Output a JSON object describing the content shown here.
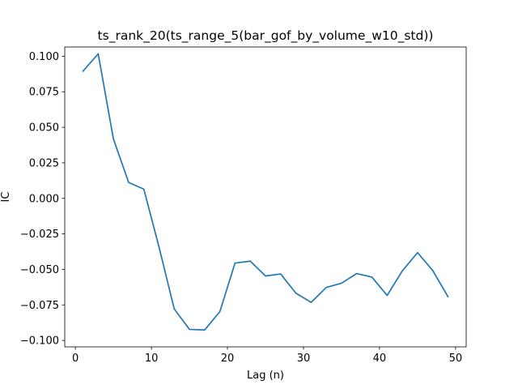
{
  "chart_data": {
    "type": "line",
    "title": "ts_rank_20(ts_range_5(bar_gof_by_volume_w10_std))",
    "xlabel": "Lag (n)",
    "ylabel": "IC",
    "xlim": [
      -1.4,
      51.4
    ],
    "ylim": [
      -0.1045,
      0.1065
    ],
    "xticks": [
      0,
      10,
      20,
      30,
      40,
      50
    ],
    "xtick_labels": [
      "0",
      "10",
      "20",
      "30",
      "40",
      "50"
    ],
    "yticks": [
      -0.1,
      -0.075,
      -0.05,
      -0.025,
      0.0,
      0.025,
      0.05,
      0.075,
      0.1
    ],
    "ytick_labels": [
      "−0.100",
      "−0.075",
      "−0.050",
      "−0.025",
      "0.000",
      "0.025",
      "0.050",
      "0.075",
      "0.100"
    ],
    "grid": false,
    "series": [
      {
        "color": "#1f77b4",
        "x": [
          1,
          3,
          5,
          7,
          9,
          11,
          13,
          15,
          17,
          19,
          21,
          23,
          25,
          27,
          29,
          31,
          33,
          35,
          37,
          39,
          41,
          43,
          45,
          47,
          49
        ],
        "y": [
          0.0895,
          0.1017,
          0.0418,
          0.0112,
          0.0065,
          -0.0343,
          -0.0778,
          -0.0922,
          -0.0926,
          -0.0797,
          -0.0455,
          -0.0442,
          -0.0546,
          -0.0532,
          -0.0667,
          -0.0732,
          -0.0627,
          -0.0597,
          -0.0529,
          -0.0554,
          -0.0683,
          -0.051,
          -0.0382,
          -0.0508,
          -0.0692
        ]
      }
    ]
  }
}
